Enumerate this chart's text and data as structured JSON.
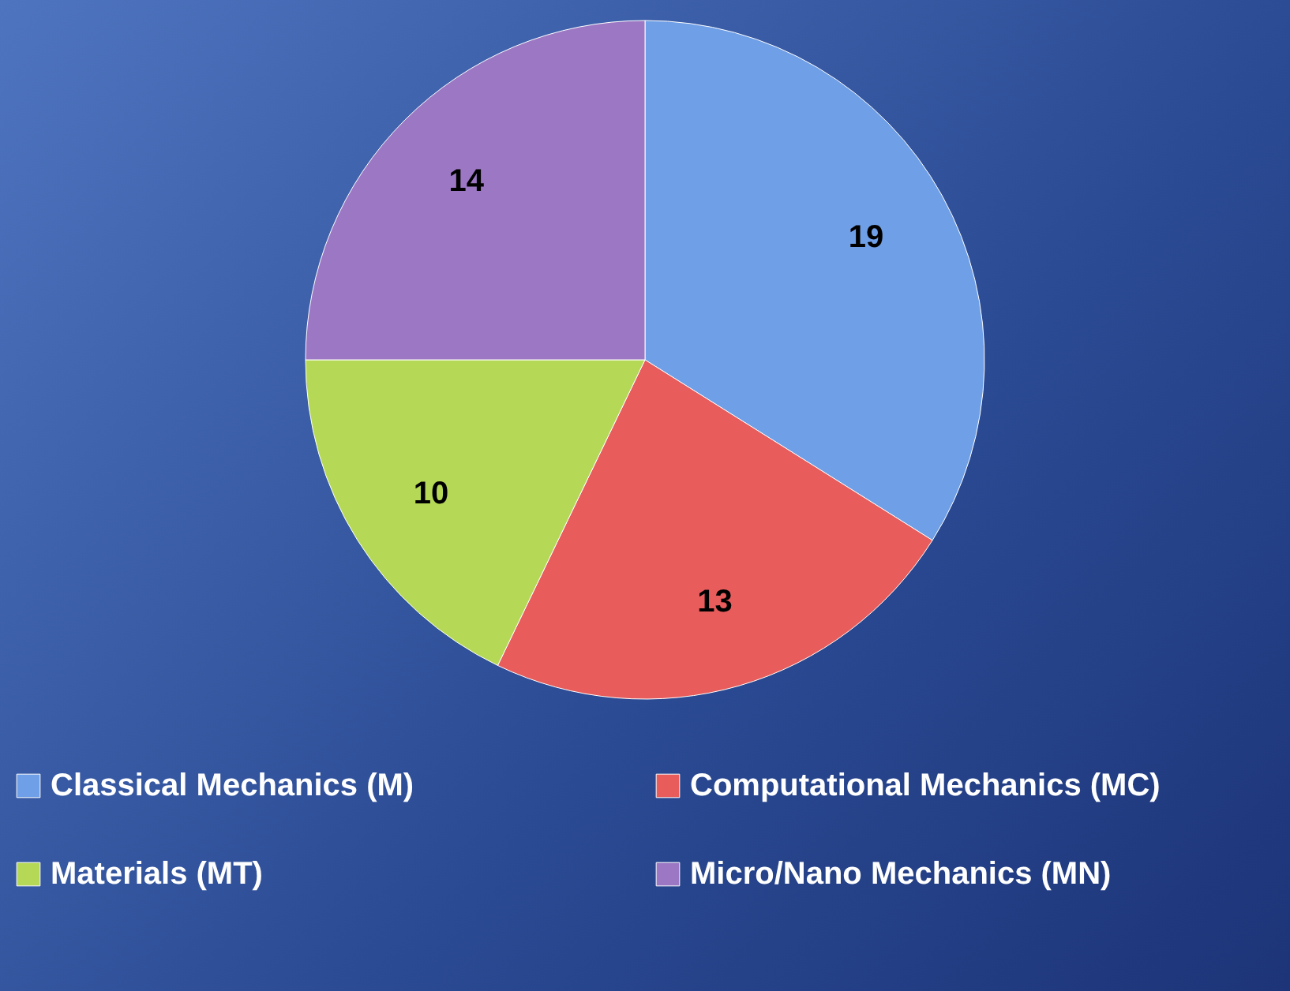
{
  "chart_data": {
    "type": "pie",
    "categories": [
      "Classical Mechanics (M)",
      "Computational Mechanics (MC)",
      "Materials (MT)",
      "Micro/Nano Mechanics (MN)"
    ],
    "values": [
      19,
      13,
      10,
      14
    ],
    "colors": [
      "#6f9fe6",
      "#e85c5c",
      "#b5d956",
      "#9c78c4"
    ],
    "data_labels": true,
    "legend": "bottom"
  }
}
